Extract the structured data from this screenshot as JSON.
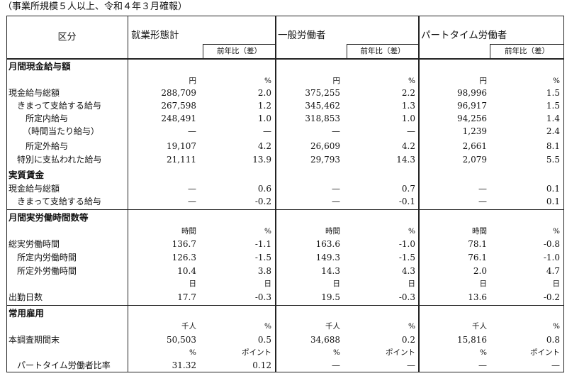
{
  "caption": "（事業所規模５人以上、令和４年３月確報）",
  "header": {
    "kubun": "区分",
    "col_total": "就業形態計",
    "col_general": "一般労働者",
    "col_part": "パートタイム労働者",
    "prev_year": "前年比（差）"
  },
  "sections": {
    "wages": "月間現金給与額",
    "real_wages": "実質賃金",
    "hours": "月間実労働時間数等",
    "employment": "常用雇用"
  },
  "rows": [
    {
      "label": "",
      "v": [
        "円",
        "%",
        "円",
        "%",
        "円",
        "%"
      ],
      "unit": true
    },
    {
      "label": "現金給与総額",
      "v": [
        "288,709",
        "2.0",
        "375,255",
        "2.2",
        "98,996",
        "1.5"
      ]
    },
    {
      "label": "きまって支給する給与",
      "v": [
        "267,598",
        "1.2",
        "345,462",
        "1.3",
        "96,917",
        "1.5"
      ]
    },
    {
      "label": "所定内給与",
      "v": [
        "248,491",
        "1.0",
        "318,853",
        "1.0",
        "94,256",
        "1.4"
      ]
    },
    {
      "label": "（時間当たり給与）",
      "v": [
        "—",
        "—",
        "—",
        "—",
        "1,239",
        "2.4"
      ]
    },
    {
      "label": "所定外給与",
      "v": [
        "19,107",
        "4.2",
        "26,609",
        "4.2",
        "2,661",
        "8.1"
      ]
    },
    {
      "label": "特別に支払われた給与",
      "v": [
        "21,111",
        "13.9",
        "29,793",
        "14.3",
        "2,079",
        "5.5"
      ]
    },
    {
      "label": "現金給与総額",
      "v": [
        "—",
        "0.6",
        "—",
        "0.7",
        "—",
        "0.1"
      ]
    },
    {
      "label": "きまって支給する給与",
      "v": [
        "—",
        "-0.2",
        "—",
        "-0.1",
        "—",
        "0.1"
      ]
    },
    {
      "label": "",
      "v": [
        "時間",
        "%",
        "時間",
        "%",
        "時間",
        "%"
      ],
      "unit": true
    },
    {
      "label": "総実労働時間",
      "v": [
        "136.7",
        "-1.1",
        "163.6",
        "-1.0",
        "78.1",
        "-0.8"
      ]
    },
    {
      "label": "所定内労働時間",
      "v": [
        "126.3",
        "-1.5",
        "149.3",
        "-1.5",
        "76.1",
        "-1.0"
      ]
    },
    {
      "label": "所定外労働時間",
      "v": [
        "10.4",
        "3.8",
        "14.3",
        "4.3",
        "2.0",
        "4.7"
      ]
    },
    {
      "label": "",
      "v": [
        "日",
        "日",
        "日",
        "日",
        "日",
        "日"
      ],
      "unit": true
    },
    {
      "label": "出勤日数",
      "v": [
        "17.7",
        "-0.3",
        "19.5",
        "-0.3",
        "13.6",
        "-0.2"
      ]
    },
    {
      "label": "",
      "v": [
        "千人",
        "%",
        "千人",
        "%",
        "千人",
        "%"
      ],
      "unit": true
    },
    {
      "label": "本調査期間末",
      "v": [
        "50,503",
        "0.5",
        "34,688",
        "0.2",
        "15,816",
        "0.8"
      ]
    },
    {
      "label": "",
      "v": [
        "%",
        "ポイント",
        "%",
        "ポイント",
        "%",
        "ポイント"
      ],
      "unit": true
    },
    {
      "label": "パートタイム労働者比率",
      "v": [
        "31.32",
        "0.12",
        "—",
        "—",
        "—",
        "—"
      ]
    }
  ]
}
